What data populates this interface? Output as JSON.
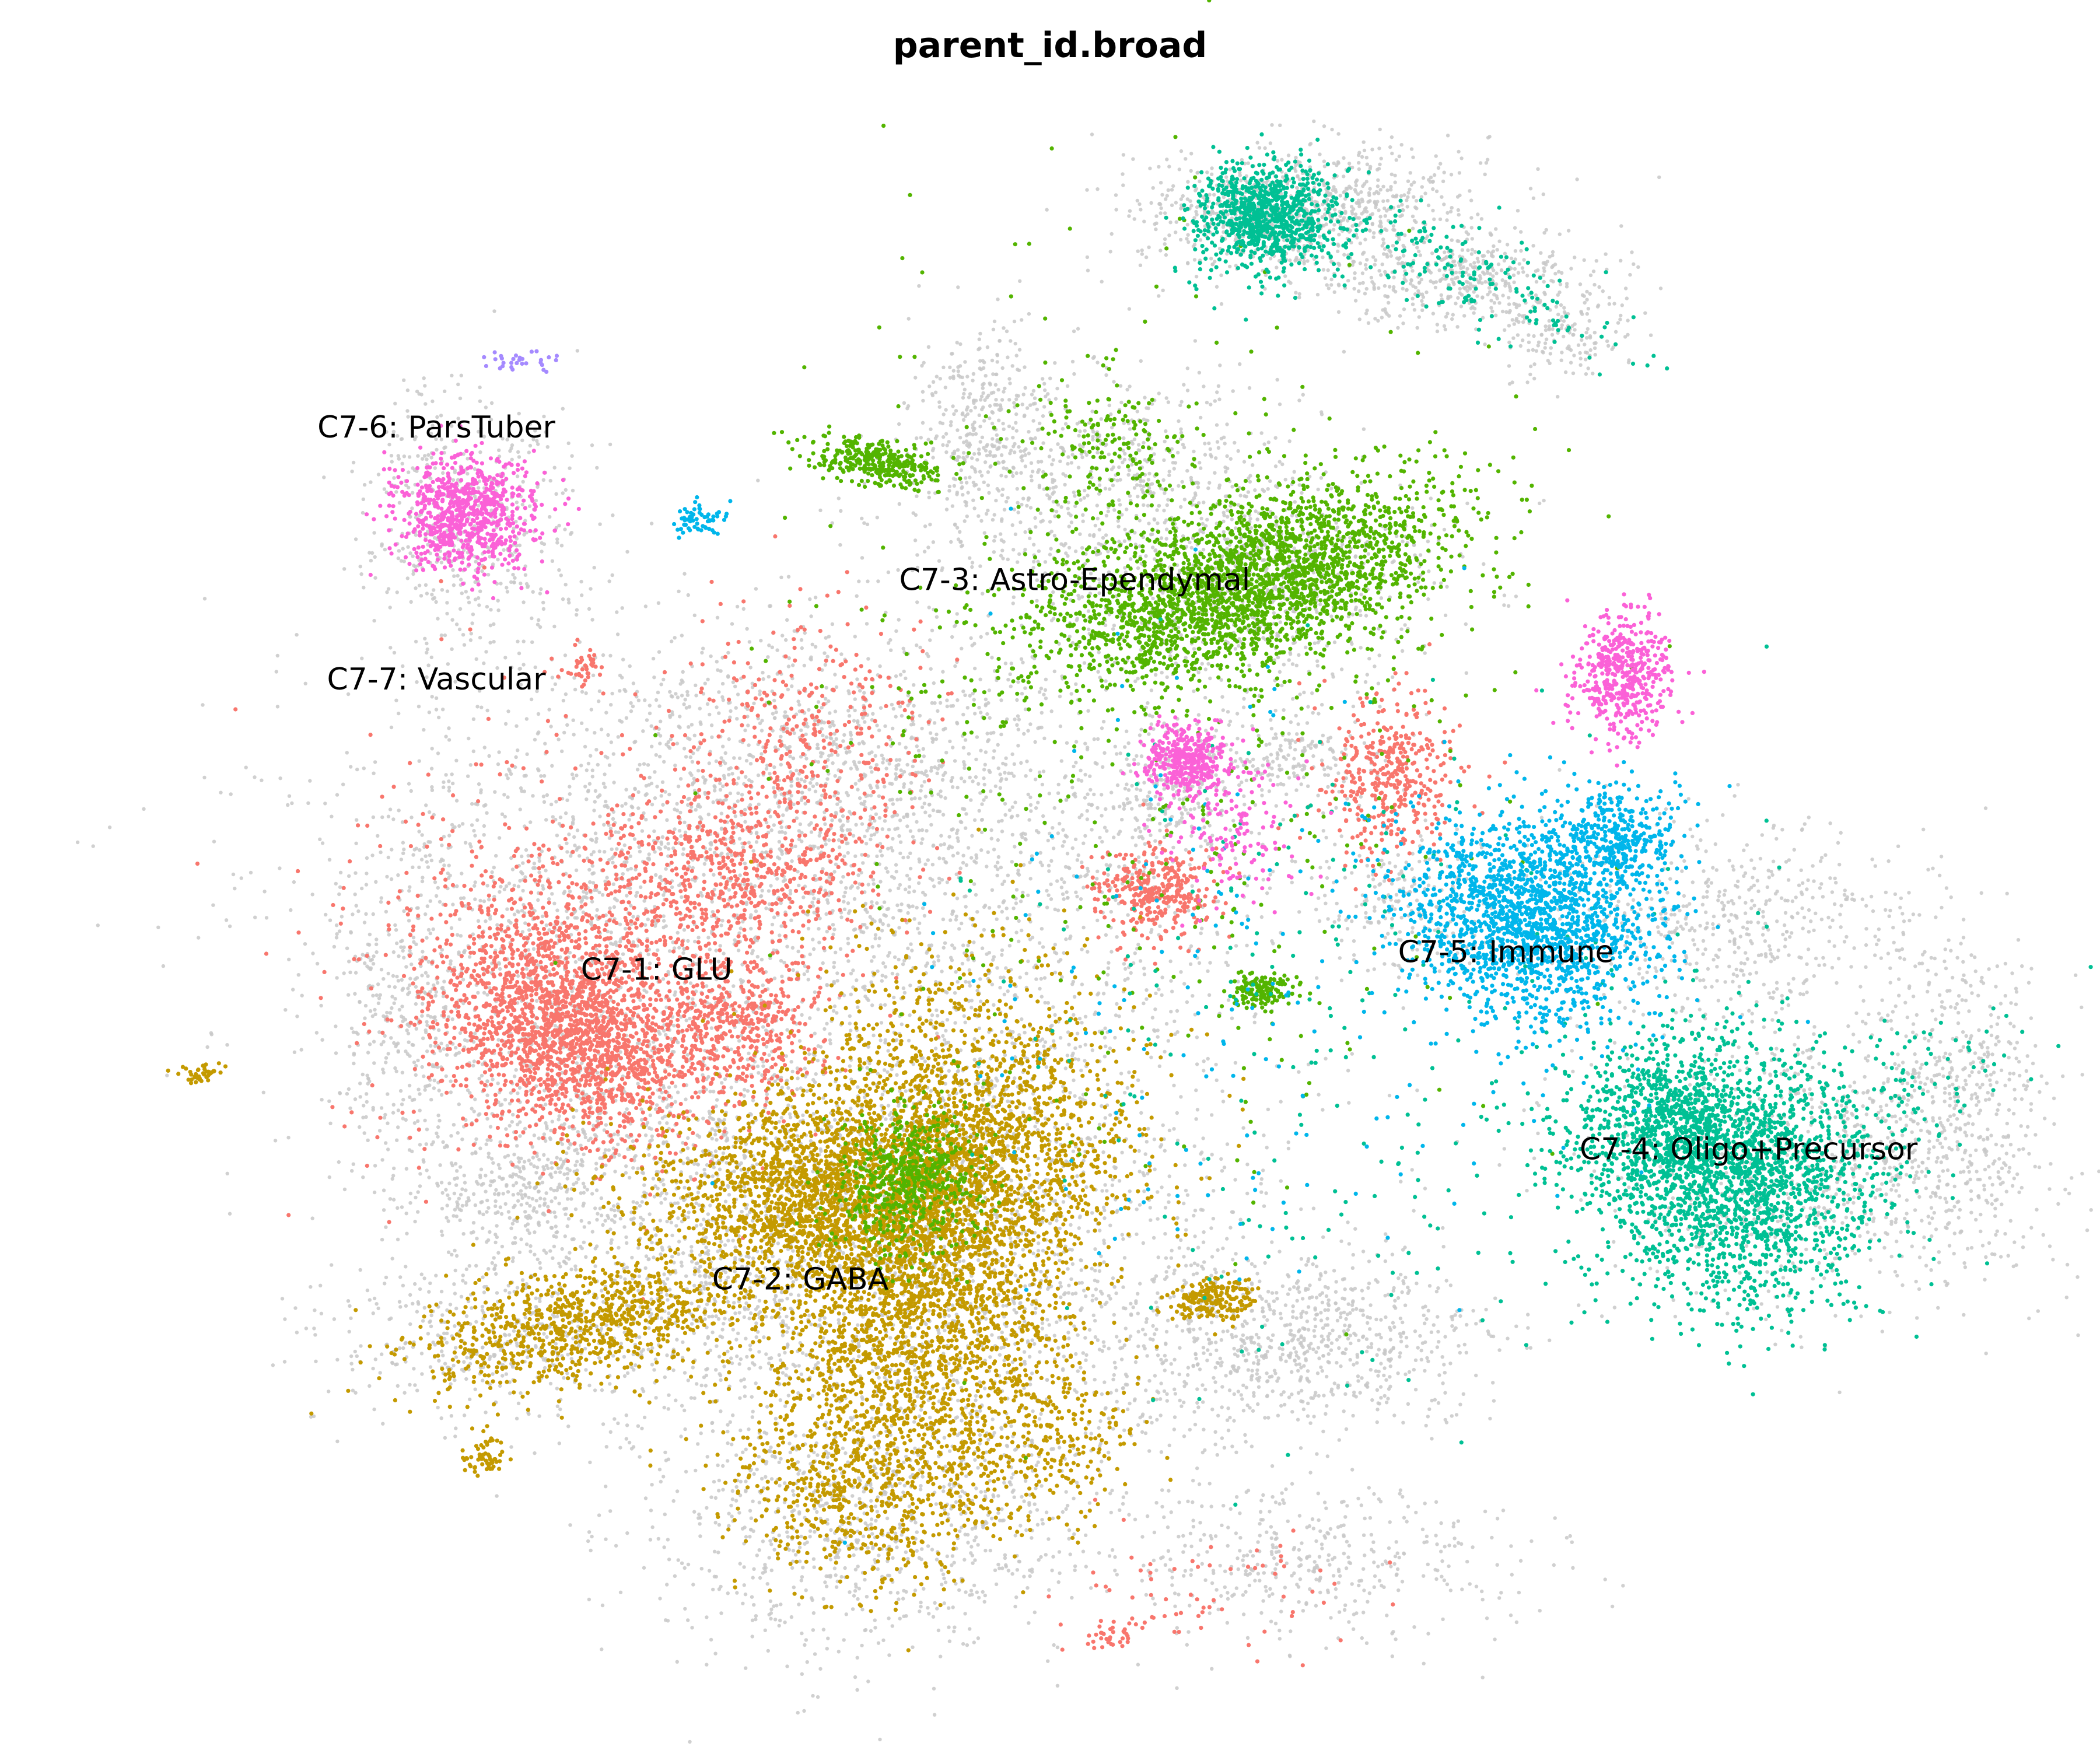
{
  "chart_data": {
    "type": "scatter",
    "title": "parent_id.broad",
    "xlabel": "",
    "ylabel": "",
    "grid": false,
    "axes_visible": false,
    "xlim": [
      0,
      100
    ],
    "ylim": [
      0,
      100
    ],
    "background_color": "#C8C8C8",
    "series": [
      {
        "name": "C7-1: GLU",
        "color": "#F8766D"
      },
      {
        "name": "C7-2: GABA",
        "color": "#C49A00"
      },
      {
        "name": "C7-3: Astro-Ependymal",
        "color": "#53B400"
      },
      {
        "name": "C7-4: Oligo+Precursor",
        "color": "#00C094"
      },
      {
        "name": "C7-5: Immune",
        "color": "#00B6EB"
      },
      {
        "name": "C7-6: ParsTuber",
        "color": "#A58AFF"
      },
      {
        "name": "C7-7: Vascular",
        "color": "#FB61D7"
      }
    ],
    "annotations": [
      {
        "text": "C7-6: ParsTuber",
        "x": 16.5,
        "y": 80.0
      },
      {
        "text": "C7-7: Vascular",
        "x": 16.5,
        "y": 64.3
      },
      {
        "text": "C7-3: Astro-Ependymal",
        "x": 50.7,
        "y": 70.5
      },
      {
        "text": "C7-1: GLU",
        "x": 28.3,
        "y": 46.2
      },
      {
        "text": "C7-5: Immune",
        "x": 73.8,
        "y": 47.3
      },
      {
        "text": "C7-4: Oligo+Precursor",
        "x": 86.8,
        "y": 35.0
      },
      {
        "text": "C7-2: GABA",
        "x": 36.0,
        "y": 26.9
      }
    ]
  }
}
